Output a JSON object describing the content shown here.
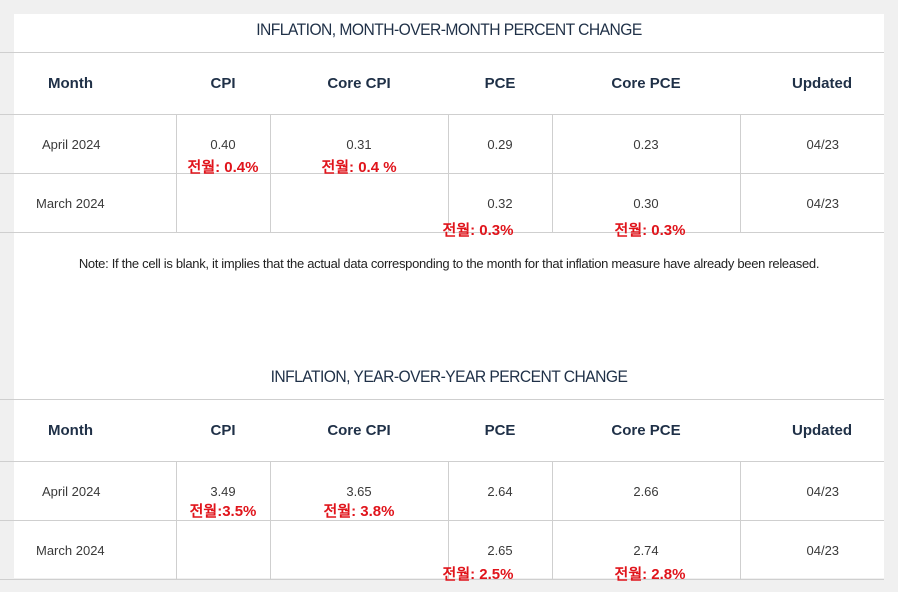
{
  "mom": {
    "title": "INFLATION, MONTH-OVER-MONTH PERCENT CHANGE",
    "headers": [
      "Month",
      "CPI",
      "Core CPI",
      "PCE",
      "Core PCE",
      "Updated"
    ],
    "rows": [
      {
        "month": "April 2024",
        "cpi": "0.40",
        "core_cpi": "0.31",
        "pce": "0.29",
        "core_pce": "0.23",
        "updated": "04/23",
        "cpi_note": "전월: 0.4%",
        "core_cpi_note": "전월: 0.4 %"
      },
      {
        "month": "March 2024",
        "cpi": "",
        "core_cpi": "",
        "pce": "0.32",
        "core_pce": "0.30",
        "updated": "04/23",
        "pce_note": "전월: 0.3%",
        "core_pce_note": "전월: 0.3%"
      }
    ],
    "note": "Note: If the cell is blank, it implies that the actual data corresponding to the month for that inflation measure have already been released."
  },
  "yoy": {
    "title": "INFLATION, YEAR-OVER-YEAR PERCENT CHANGE",
    "headers": [
      "Month",
      "CPI",
      "Core CPI",
      "PCE",
      "Core PCE",
      "Updated"
    ],
    "rows": [
      {
        "month": "April 2024",
        "cpi": "3.49",
        "core_cpi": "3.65",
        "pce": "2.64",
        "core_pce": "2.66",
        "updated": "04/23",
        "cpi_note": "전월:3.5%",
        "core_cpi_note": "전월: 3.8%"
      },
      {
        "month": "March 2024",
        "cpi": "",
        "core_cpi": "",
        "pce": "2.65",
        "core_pce": "2.74",
        "updated": "04/23",
        "pce_note": "전월: 2.5%",
        "core_pce_note": "전월: 2.8%"
      }
    ]
  },
  "colors": {
    "header_text": "#1f3047",
    "annotation_red": "#e0141b",
    "border": "#cfcfcf"
  }
}
